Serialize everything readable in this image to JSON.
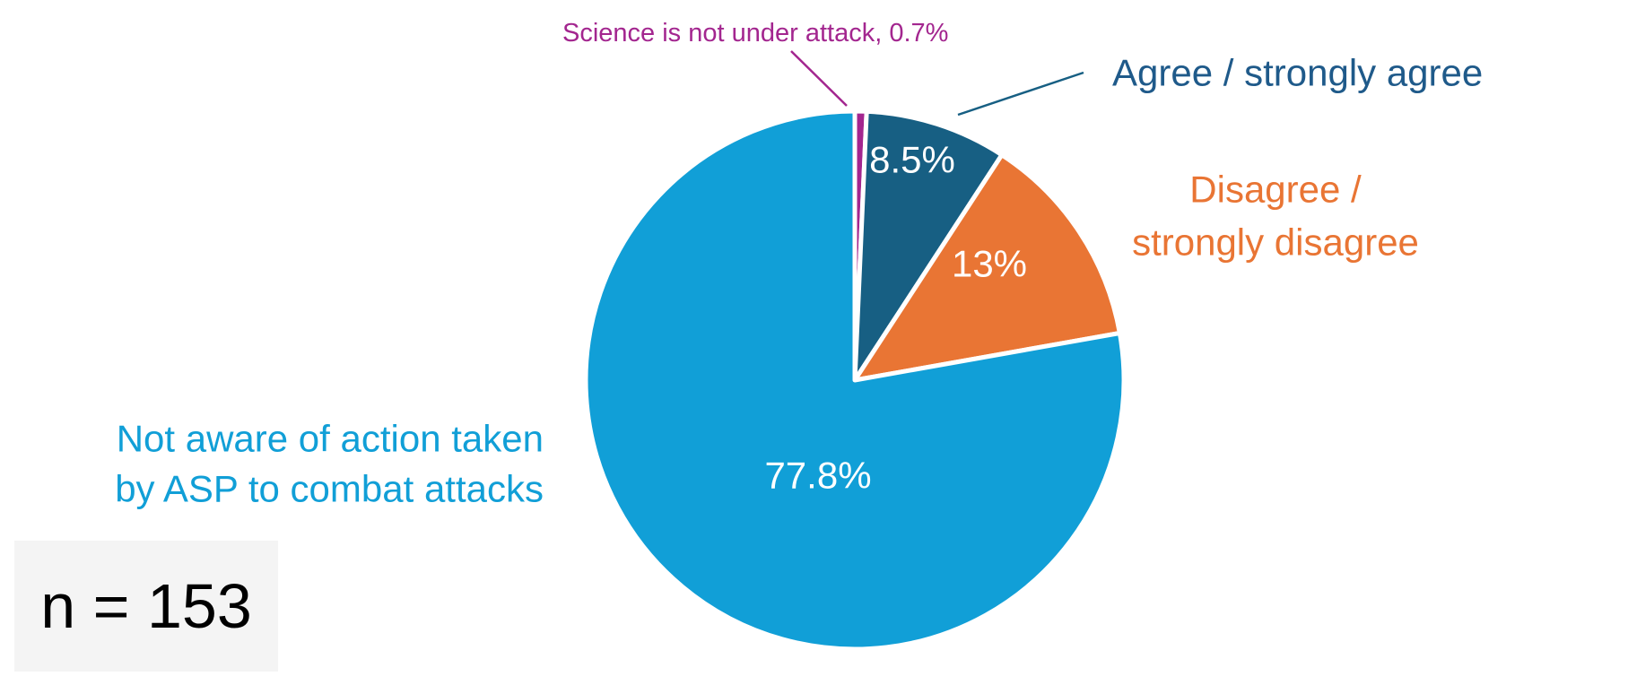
{
  "chart_data": {
    "type": "pie",
    "slices": [
      {
        "label": "Science is not under attack",
        "value": 0.7,
        "data_label": "",
        "callout_label": "Science is not under attack, 0.7%",
        "color": "#a3268f",
        "label_color": "#a3268f"
      },
      {
        "label": "Agree / strongly agree",
        "value": 8.5,
        "data_label": "8.5%",
        "callout_label": "Agree / strongly agree",
        "color": "#175f83",
        "label_color": "#1f5a8a"
      },
      {
        "label": "Disagree / strongly disagree",
        "value": 13,
        "data_label": "13%",
        "callout_label": "Disagree / strongly disagree",
        "color": "#e97534",
        "label_color": "#e97534"
      },
      {
        "label": "Not aware of action taken by ASP to combat attacks",
        "value": 77.8,
        "data_label": "77.8%",
        "callout_label": "Not aware of action taken by ASP to combat attacks",
        "color": "#119fd7",
        "label_color": "#119fd7"
      }
    ],
    "start_angle_deg": 0,
    "direction": "clockwise"
  },
  "sample_size": "n = 153"
}
